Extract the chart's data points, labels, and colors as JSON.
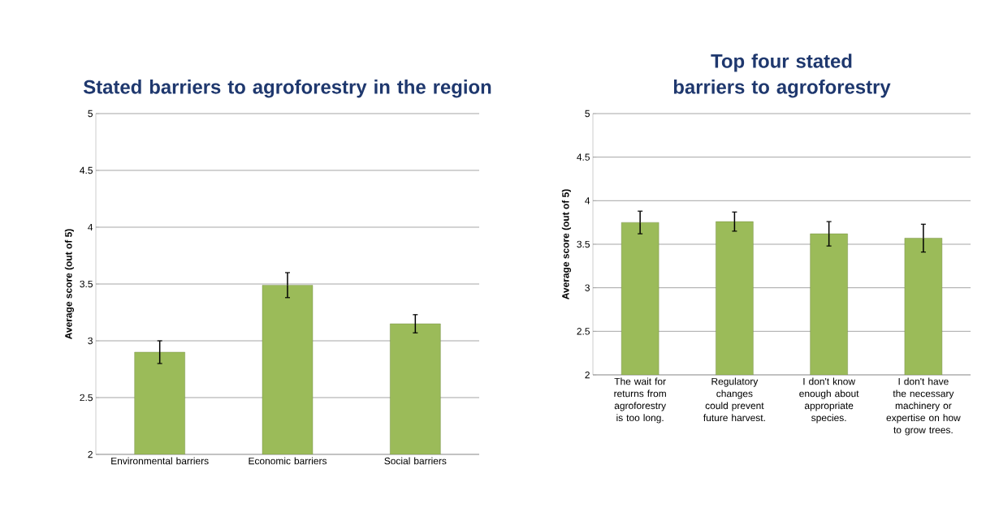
{
  "chart_data": [
    {
      "type": "bar",
      "title": "Stated barriers to agroforestry in the region",
      "ylabel": "Average score (out of 5)",
      "categories": [
        "Environmental barriers",
        "Economic barriers",
        "Social barriers"
      ],
      "values": [
        2.9,
        3.49,
        3.15
      ],
      "errors": [
        0.1,
        0.11,
        0.08
      ],
      "color": "#9bbb59",
      "ylim": [
        2,
        5
      ],
      "yticks": [
        2,
        2.5,
        3,
        3.5,
        4,
        4.5,
        5
      ],
      "grid": "y"
    },
    {
      "type": "bar",
      "title": "Top four stated barriers to agroforestry",
      "ylabel": "Average score (out of 5)",
      "categories": [
        "The wait for returns from agroforestry is too long.",
        "Regulatory changes could prevent future harvest.",
        "I don't know enough about appropriate species.",
        "I don't have the necessary machinery or expertise on how to grow trees."
      ],
      "values": [
        3.75,
        3.76,
        3.62,
        3.57
      ],
      "errors": [
        0.13,
        0.11,
        0.14,
        0.16
      ],
      "color": "#9bbb59",
      "ylim": [
        2,
        5
      ],
      "yticks": [
        2,
        2.5,
        3,
        3.5,
        4,
        4.5,
        5
      ],
      "grid": "y"
    }
  ]
}
